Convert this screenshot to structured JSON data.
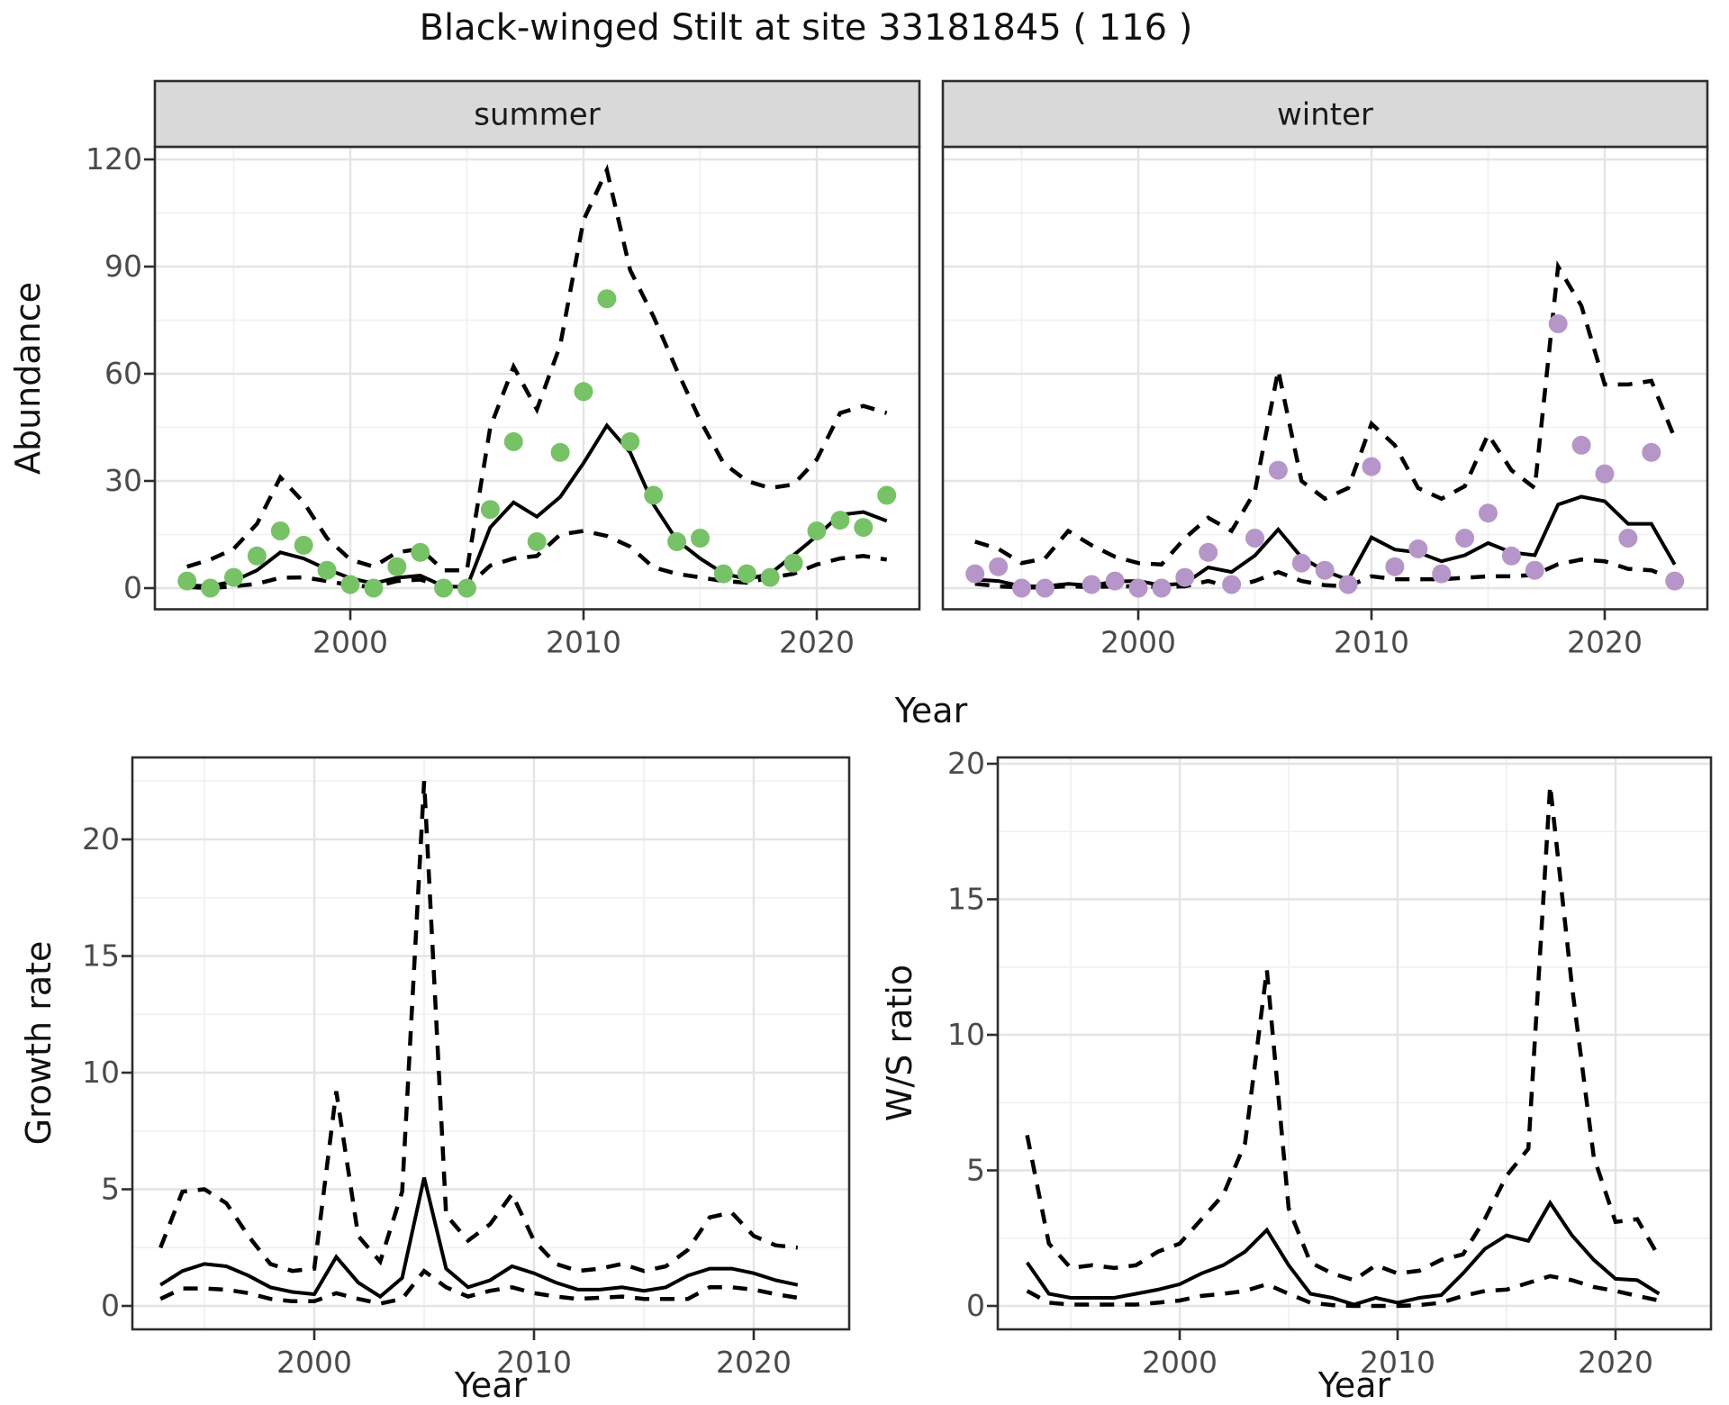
{
  "title": "Black-winged Stilt at site 33181845 ( 116 )",
  "labels": {
    "year": "Year",
    "abundance": "Abundance",
    "growth_rate": "Growth rate",
    "ws_ratio": "W/S ratio"
  },
  "colors": {
    "summer_point": "#77C266",
    "winter_point": "#B696C8",
    "fit_line": "#000000",
    "ci_line": "#000000",
    "strip_bg": "#D9D9D9",
    "panel_border": "#2E2E2E",
    "grid_major": "#E4E4E4",
    "grid_minor": "#F1F1F1",
    "tick_text": "#4A4A4A"
  },
  "chart_data": [
    {
      "id": "abundance-summer",
      "type": "line",
      "facet": "summer",
      "ylabel": "Abundance",
      "xlabel": "Year",
      "point_color": "#77C266",
      "xlim": [
        1991.6,
        2024.4
      ],
      "ylim": [
        -6,
        123.5
      ],
      "xticks": [
        2000,
        2010,
        2020
      ],
      "yticks": [
        0,
        30,
        60,
        90,
        120
      ],
      "xminor": [
        1995,
        2005,
        2015
      ],
      "yminor": [
        15,
        45,
        75,
        105
      ],
      "grid": true,
      "legend": "none",
      "years": [
        1993,
        1994,
        1995,
        1996,
        1997,
        1998,
        1999,
        2000,
        2001,
        2002,
        2003,
        2004,
        2005,
        2006,
        2007,
        2008,
        2009,
        2010,
        2011,
        2012,
        2013,
        2014,
        2015,
        2016,
        2017,
        2018,
        2019,
        2020,
        2021,
        2022,
        2023
      ],
      "series": [
        {
          "name": "observed",
          "style": "points",
          "values": [
            2,
            0,
            3,
            9,
            16,
            12,
            5,
            1,
            0,
            6,
            10,
            0,
            0,
            22,
            41,
            13,
            38,
            55,
            81,
            41,
            26,
            13,
            14,
            4,
            4,
            3,
            7,
            16,
            19,
            17,
            26
          ]
        },
        {
          "name": "fit",
          "style": "solid",
          "values": [
            0.8,
            0.5,
            2,
            5,
            10,
            8.3,
            5.3,
            2.8,
            1.3,
            2.9,
            3.5,
            0.5,
            0.3,
            17,
            24,
            20,
            25.5,
            35,
            45.5,
            38,
            23.4,
            13.4,
            8.3,
            4.1,
            2.5,
            4,
            9.2,
            14.6,
            20.5,
            21.3,
            18.8
          ]
        },
        {
          "name": "upper_ci",
          "style": "dashed",
          "values": [
            6,
            8,
            11,
            18,
            31,
            24,
            14,
            8,
            6,
            10,
            11,
            5,
            5,
            45,
            62,
            50,
            68,
            103,
            117,
            89,
            76,
            61,
            47,
            35,
            30,
            28,
            29,
            36,
            49,
            51,
            49
          ]
        },
        {
          "name": "lower_ci",
          "style": "dashed",
          "values": [
            0.3,
            0,
            0.5,
            1.2,
            2.9,
            3,
            2,
            0.8,
            0.3,
            2,
            2.4,
            0.3,
            0.4,
            6.3,
            8.3,
            9,
            15,
            16,
            14.6,
            11.6,
            5.8,
            4,
            3,
            2,
            1.5,
            2.9,
            4,
            6.6,
            8.3,
            9,
            8
          ]
        }
      ]
    },
    {
      "id": "abundance-winter",
      "type": "line",
      "facet": "winter",
      "ylabel": "Abundance",
      "xlabel": "Year",
      "point_color": "#B696C8",
      "xlim": [
        1991.6,
        2024.4
      ],
      "ylim": [
        -6,
        123.5
      ],
      "xticks": [
        2000,
        2010,
        2020
      ],
      "yticks": [
        0,
        30,
        60,
        90,
        120
      ],
      "xminor": [
        1995,
        2005,
        2015
      ],
      "yminor": [
        15,
        45,
        75,
        105
      ],
      "grid": true,
      "legend": "none",
      "years": [
        1993,
        1994,
        1995,
        1996,
        1997,
        1998,
        1999,
        2000,
        2001,
        2002,
        2003,
        2004,
        2005,
        2006,
        2007,
        2008,
        2009,
        2010,
        2011,
        2012,
        2013,
        2014,
        2015,
        2016,
        2017,
        2018,
        2019,
        2020,
        2021,
        2022,
        2023
      ],
      "series": [
        {
          "name": "observed",
          "style": "points",
          "values": [
            4,
            6,
            0,
            0,
            null,
            1,
            2,
            0,
            0,
            3,
            10,
            1,
            14,
            33,
            7,
            5,
            1,
            34,
            6,
            11,
            4,
            14,
            21,
            9,
            5,
            74,
            40,
            32,
            14,
            38,
            2
          ]
        },
        {
          "name": "fit",
          "style": "solid",
          "values": [
            2.4,
            2,
            0.5,
            0.5,
            1.2,
            0.7,
            1.9,
            2,
            0.8,
            1.3,
            5.8,
            4.5,
            9.1,
            16.4,
            8.6,
            4.8,
            2.3,
            14.2,
            10.8,
            10,
            7.5,
            9.2,
            12.6,
            10,
            9.2,
            23.4,
            25.6,
            24.3,
            18,
            18,
            6.6
          ]
        },
        {
          "name": "upper_ci",
          "style": "dashed",
          "values": [
            13,
            11,
            7,
            8.3,
            16,
            12,
            8.8,
            7,
            6.6,
            14,
            19.7,
            16,
            27,
            61,
            30,
            25,
            28,
            46,
            40,
            28,
            25,
            28.5,
            43,
            33,
            28,
            90,
            79,
            57,
            57,
            58,
            42
          ]
        },
        {
          "name": "lower_ci",
          "style": "dashed",
          "values": [
            1.2,
            0.5,
            0.2,
            0.2,
            0.5,
            0.3,
            0.5,
            0.5,
            0.3,
            0.5,
            2,
            0.2,
            2,
            4.5,
            2,
            0.8,
            0.5,
            3.3,
            2.5,
            2.5,
            2.5,
            2.9,
            3.3,
            3.3,
            3.7,
            6.7,
            8,
            7.5,
            5.4,
            5,
            2.5
          ]
        }
      ]
    },
    {
      "id": "growth-rate",
      "type": "line",
      "facet": null,
      "ylabel": "Growth rate",
      "xlabel": "Year",
      "xlim": [
        1991.7,
        2024.5
      ],
      "ylim": [
        -1,
        23.5
      ],
      "xticks": [
        2000,
        2010,
        2020
      ],
      "yticks": [
        0,
        5,
        10,
        15,
        20
      ],
      "xminor": [
        1995,
        2005,
        2015
      ],
      "yminor": [
        2.5,
        7.5,
        12.5,
        17.5,
        22.5
      ],
      "grid": true,
      "legend": "none",
      "years": [
        1993,
        1994,
        1995,
        1996,
        1997,
        1998,
        1999,
        2000,
        2001,
        2002,
        2003,
        2004,
        2005,
        2006,
        2007,
        2008,
        2009,
        2010,
        2011,
        2012,
        2013,
        2014,
        2015,
        2016,
        2017,
        2018,
        2019,
        2020,
        2021,
        2022
      ],
      "series": [
        {
          "name": "fit",
          "style": "solid",
          "values": [
            0.9,
            1.5,
            1.8,
            1.7,
            1.3,
            0.8,
            0.6,
            0.5,
            2.1,
            1.0,
            0.4,
            1.2,
            5.5,
            1.6,
            0.8,
            1.1,
            1.7,
            1.4,
            1.0,
            0.7,
            0.7,
            0.8,
            0.65,
            0.8,
            1.3,
            1.6,
            1.6,
            1.4,
            1.1,
            0.9
          ]
        },
        {
          "name": "upper_ci",
          "style": "dashed",
          "values": [
            2.5,
            4.9,
            5.0,
            4.4,
            3.0,
            1.8,
            1.5,
            1.6,
            9.2,
            3.0,
            1.9,
            4.9,
            22.5,
            3.9,
            2.8,
            3.5,
            4.8,
            2.8,
            1.8,
            1.5,
            1.6,
            1.8,
            1.5,
            1.7,
            2.4,
            3.8,
            4.0,
            3.0,
            2.6,
            2.5
          ]
        },
        {
          "name": "lower_ci",
          "style": "dashed",
          "values": [
            0.3,
            0.75,
            0.75,
            0.7,
            0.55,
            0.3,
            0.2,
            0.2,
            0.55,
            0.3,
            0.1,
            0.3,
            1.5,
            0.8,
            0.4,
            0.65,
            0.8,
            0.55,
            0.4,
            0.3,
            0.35,
            0.4,
            0.3,
            0.3,
            0.3,
            0.8,
            0.8,
            0.7,
            0.5,
            0.35
          ]
        }
      ]
    },
    {
      "id": "ws-ratio",
      "type": "line",
      "facet": null,
      "ylabel": "W/S ratio",
      "xlabel": "Year",
      "xlim": [
        1991.6,
        2024.0
      ],
      "ylim": [
        -1,
        20.4
      ],
      "xticks": [
        2000,
        2010,
        2020
      ],
      "yticks": [
        0,
        5,
        10,
        15,
        20
      ],
      "xminor": [
        1995,
        2005,
        2015
      ],
      "yminor": [
        2.5,
        7.5,
        12.5,
        17.5
      ],
      "grid": true,
      "legend": "none",
      "years": [
        1993,
        1994,
        1995,
        1996,
        1997,
        1998,
        1999,
        2000,
        2001,
        2002,
        2003,
        2004,
        2005,
        2006,
        2007,
        2008,
        2009,
        2010,
        2011,
        2012,
        2013,
        2014,
        2015,
        2016,
        2017,
        2018,
        2019,
        2020,
        2021,
        2022
      ],
      "series": [
        {
          "name": "fit",
          "style": "solid",
          "values": [
            1.6,
            0.45,
            0.3,
            0.3,
            0.3,
            0.45,
            0.6,
            0.8,
            1.2,
            1.5,
            2.0,
            2.8,
            1.5,
            0.45,
            0.3,
            0.05,
            0.3,
            0.12,
            0.3,
            0.4,
            1.2,
            2.1,
            2.6,
            2.4,
            3.8,
            2.6,
            1.7,
            1.0,
            0.95,
            0.45
          ]
        },
        {
          "name": "upper_ci",
          "style": "dashed",
          "values": [
            6.3,
            2.3,
            1.4,
            1.5,
            1.4,
            1.5,
            2.0,
            2.3,
            3.2,
            4.1,
            6.0,
            12.4,
            3.6,
            1.6,
            1.2,
            0.95,
            1.5,
            1.2,
            1.3,
            1.7,
            1.9,
            3.2,
            4.8,
            5.8,
            19.2,
            11.8,
            5.5,
            3.1,
            3.2,
            1.8
          ]
        },
        {
          "name": "lower_ci",
          "style": "dashed",
          "values": [
            0.55,
            0.12,
            0.05,
            0.05,
            0.05,
            0.05,
            0.12,
            0.2,
            0.37,
            0.45,
            0.55,
            0.8,
            0.45,
            0.12,
            0.03,
            0,
            0,
            0,
            0.03,
            0.12,
            0.37,
            0.55,
            0.6,
            0.85,
            1.1,
            0.95,
            0.7,
            0.55,
            0.37,
            0.2
          ]
        }
      ]
    }
  ]
}
